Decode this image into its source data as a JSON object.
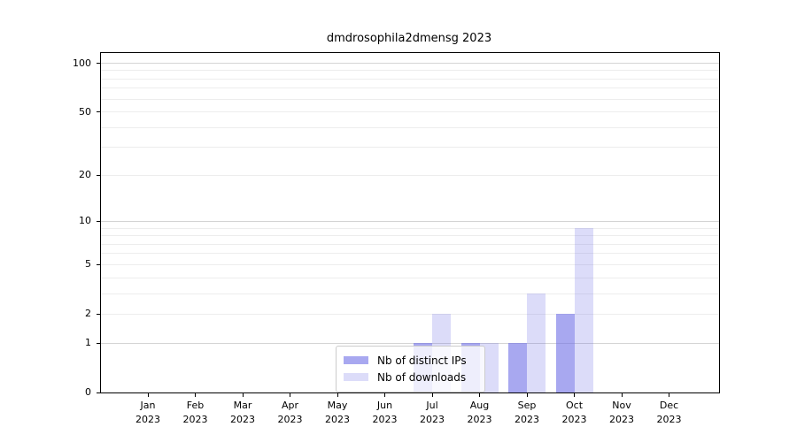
{
  "title": "dmdrosophila2dmensg 2023",
  "chart_data": {
    "type": "bar",
    "title": "dmdrosophila2dmensg 2023",
    "x_categories": [
      "Jan",
      "Feb",
      "Mar",
      "Apr",
      "May",
      "Jun",
      "Jul",
      "Aug",
      "Sep",
      "Oct",
      "Nov",
      "Dec"
    ],
    "x_year": "2023",
    "series": [
      {
        "name": "Nb of distinct IPs",
        "color": "rgba(110,110,230,0.6)",
        "values": [
          0,
          0,
          0,
          0,
          0,
          0,
          1,
          1,
          1,
          2,
          0,
          0
        ]
      },
      {
        "name": "Nb of downloads",
        "color": "rgba(110,110,230,0.24)",
        "values": [
          0,
          0,
          0,
          0,
          0,
          0,
          2,
          1,
          3,
          9,
          0,
          0
        ]
      }
    ],
    "yscale": "log1p",
    "ylim": [
      0,
      115
    ],
    "yticks": [
      0,
      1,
      2,
      5,
      10,
      20,
      50,
      100
    ],
    "minor_gridlines": [
      2,
      3,
      4,
      5,
      6,
      7,
      8,
      9,
      20,
      30,
      40,
      50,
      60,
      70,
      80,
      90
    ],
    "major_gridlines": [
      1,
      10,
      100
    ],
    "legend": {
      "position": "lower center inside"
    },
    "colors": {
      "grid_minor": "#ededed",
      "grid_major": "#d4d4d4",
      "spine": "#000000",
      "text": "#000000",
      "background": "#ffffff"
    }
  }
}
